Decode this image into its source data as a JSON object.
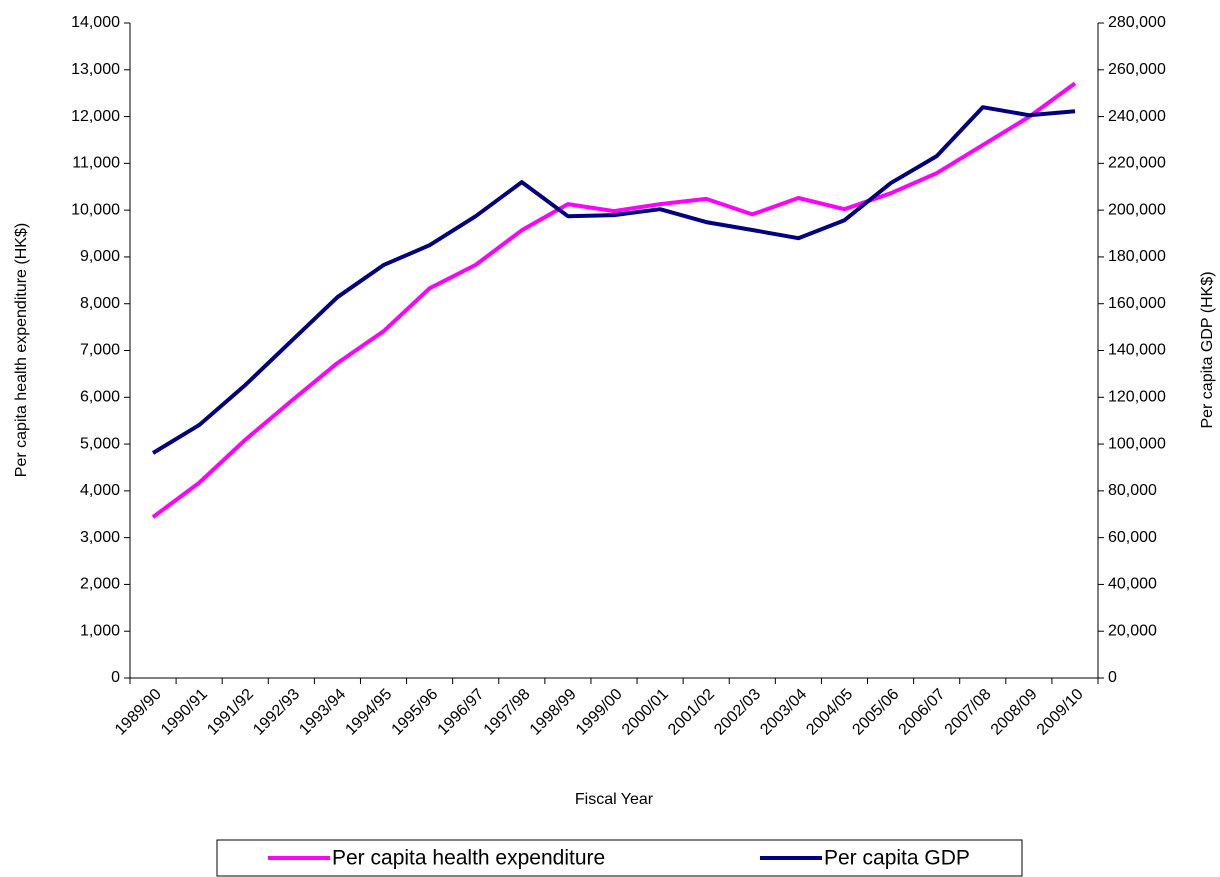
{
  "chart_data": {
    "type": "line",
    "x_label": "Fiscal Year",
    "y_label": "Per capita health expenditure (HK$)",
    "y2_label": "Per capita GDP (HK$)",
    "categories": [
      "1989/90",
      "1990/91",
      "1991/92",
      "1992/93",
      "1993/94",
      "1994/95",
      "1995/96",
      "1996/97",
      "1997/98",
      "1998/99",
      "1999/00",
      "2000/01",
      "2001/02",
      "2002/03",
      "2003/04",
      "2004/05",
      "2005/06",
      "2006/07",
      "2007/08",
      "2008/09",
      "2009/10"
    ],
    "series": [
      {
        "name": "Per capita health expenditure",
        "color": "#ff00ff",
        "axis": "y",
        "values": [
          3440,
          4170,
          5090,
          5920,
          6730,
          7410,
          8330,
          8830,
          9570,
          10130,
          9980,
          10130,
          10240,
          9910,
          10260,
          10020,
          10360,
          10790,
          11390,
          11990,
          12710
        ]
      },
      {
        "name": "Per capita GDP",
        "color": "#000080",
        "axis": "y2",
        "values": [
          96200,
          108100,
          125200,
          144000,
          162800,
          176500,
          185000,
          197400,
          212000,
          197400,
          197900,
          200400,
          194900,
          191500,
          188000,
          195700,
          211500,
          223100,
          244000,
          240600,
          242300
        ]
      }
    ],
    "ylim": [
      0,
      14000
    ],
    "yticks": [
      0,
      {
        "value": 1000,
        "label": "1,000"
      },
      {
        "value": 2000,
        "label": "2,000"
      },
      {
        "value": 3000,
        "label": "3,000"
      },
      {
        "value": 4000,
        "label": "4,000"
      },
      {
        "value": 5000,
        "label": "5,000"
      },
      {
        "value": 6000,
        "label": "6,000"
      },
      {
        "value": 7000,
        "label": "7,000"
      },
      {
        "value": 8000,
        "label": "8,000"
      },
      {
        "value": 9000,
        "label": "9,000"
      },
      {
        "value": 10000,
        "label": "10,000"
      },
      {
        "value": 11000,
        "label": "11,000"
      },
      {
        "value": 12000,
        "label": "12,000"
      },
      {
        "value": 13000,
        "label": "13,000"
      },
      {
        "value": 14000,
        "label": "14,000"
      }
    ],
    "y2lim": [
      0,
      280000
    ],
    "y2ticks": [
      0,
      {
        "value": 20000,
        "label": "20,000"
      },
      {
        "value": 40000,
        "label": "40,000"
      },
      {
        "value": 60000,
        "label": "60,000"
      },
      {
        "value": 80000,
        "label": "80,000"
      },
      {
        "value": 100000,
        "label": "100,000"
      },
      {
        "value": 120000,
        "label": "120,000"
      },
      {
        "value": 140000,
        "label": "140,000"
      },
      {
        "value": 160000,
        "label": "160,000"
      },
      {
        "value": 180000,
        "label": "180,000"
      },
      {
        "value": 200000,
        "label": "200,000"
      },
      {
        "value": 220000,
        "label": "220,000"
      },
      {
        "value": 240000,
        "label": "240,000"
      },
      {
        "value": 260000,
        "label": "260,000"
      },
      {
        "value": 280000,
        "label": "280,000"
      }
    ],
    "grid": false,
    "legend": "bottom"
  }
}
